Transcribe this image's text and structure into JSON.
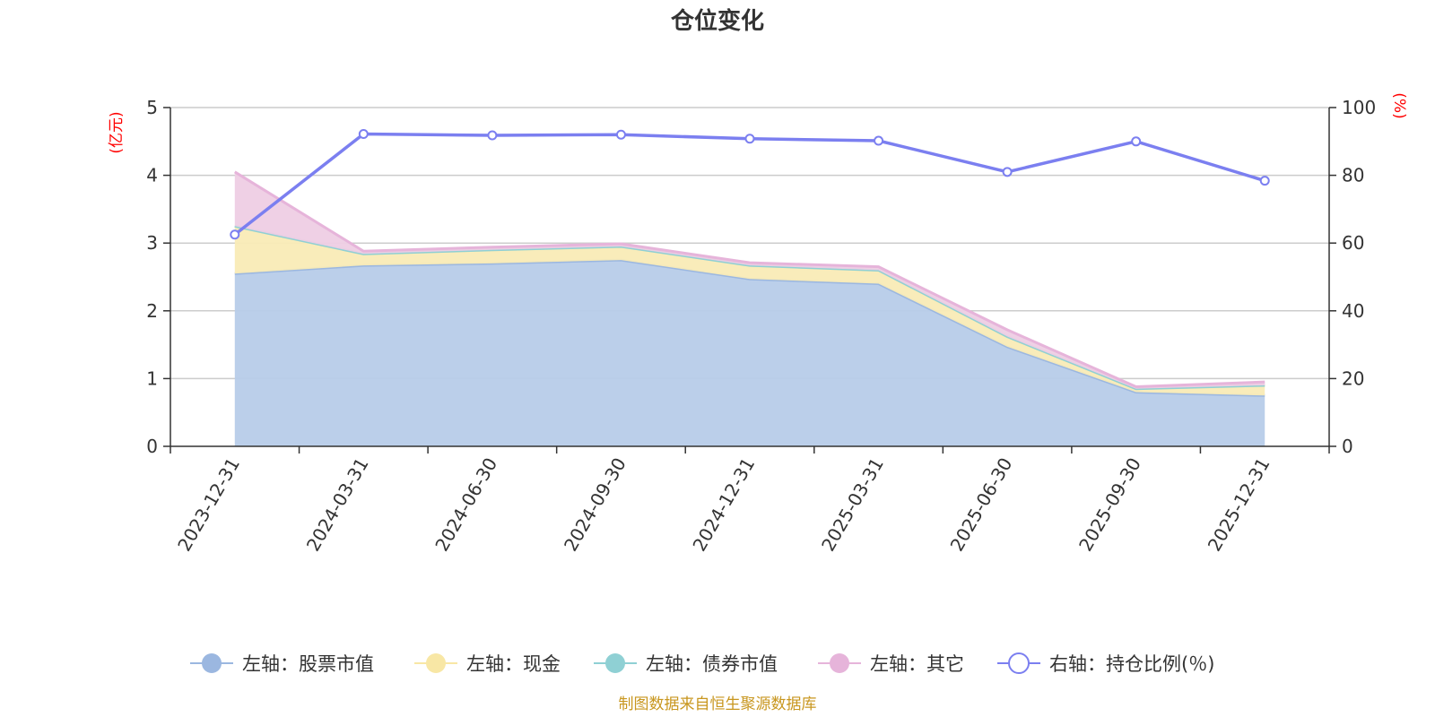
{
  "chart_data": {
    "type": "area",
    "title": "仓位变化",
    "left_axis_unit": "(亿元)",
    "right_axis_unit": "(%)",
    "categories": [
      "2023-12-31",
      "2024-03-31",
      "2024-06-30",
      "2024-09-30",
      "2024-12-31",
      "2025-03-31",
      "2025-06-30",
      "2025-09-30",
      "2025-12-31"
    ],
    "left_ylim": [
      0,
      5
    ],
    "left_ticks": [
      0,
      1,
      2,
      3,
      4,
      5
    ],
    "right_ylim": [
      0,
      100
    ],
    "right_ticks": [
      0,
      20,
      40,
      60,
      80,
      100
    ],
    "stacked_area_series": [
      {
        "name": "左轴：股票市值",
        "color": "#9bb7e0",
        "fill": "#b7cce9",
        "values": [
          2.55,
          2.67,
          2.7,
          2.75,
          2.47,
          2.4,
          1.47,
          0.8,
          0.75
        ]
      },
      {
        "name": "左轴：现金",
        "color": "#f8e7a5",
        "fill": "#f9ebb6",
        "values": [
          0.7,
          0.17,
          0.2,
          0.2,
          0.2,
          0.2,
          0.15,
          0.05,
          0.15
        ]
      },
      {
        "name": "左轴：债券市值",
        "color": "#8fd0d4",
        "fill": "#a8dcdf",
        "values": [
          0,
          0,
          0,
          0,
          0,
          0,
          0,
          0,
          0
        ]
      },
      {
        "name": "左轴：其它",
        "color": "#e6b4da",
        "fill": "#eecde4",
        "values": [
          0.8,
          0.04,
          0.04,
          0.04,
          0.04,
          0.05,
          0.1,
          0.03,
          0.05
        ]
      }
    ],
    "line_series": {
      "name": "右轴：持仓比例(％)",
      "axis": "right",
      "color": "#7b7ff0",
      "values": [
        62.5,
        92.2,
        91.8,
        92.0,
        90.8,
        90.2,
        81.0,
        90.0,
        78.4
      ]
    },
    "source": "制图数据来自恒生聚源数据库"
  }
}
